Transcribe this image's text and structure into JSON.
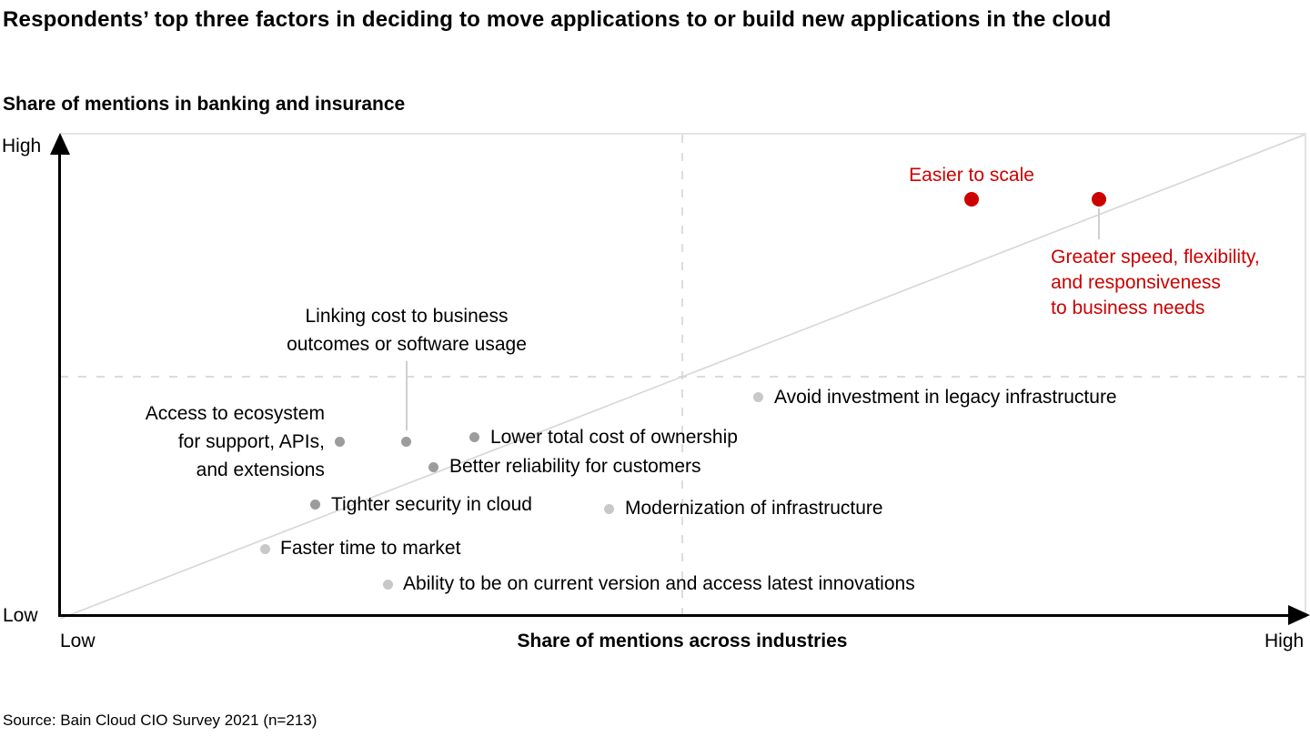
{
  "title": "Respondents’ top three factors in deciding to move applications to or build new applications in the cloud",
  "subtitle": "Share of mentions in banking and insurance",
  "source": "Source: Bain Cloud CIO Survey 2021 (n=213)",
  "axes": {
    "y_high": "High",
    "y_low": "Low",
    "x_low": "Low",
    "x_high": "High",
    "x_title": "Share of mentions across industries"
  },
  "colors": {
    "highlight_red": "#cc0000",
    "dark_dot_gray": "#9c9c9c",
    "light_dot_gray": "#c8c8c8",
    "reference_line_gray": "#d6d6d6",
    "dashed_grid_gray": "#dcdcdc",
    "text_black": "#000000"
  },
  "chart_data": {
    "type": "scatter",
    "title": "Respondents’ top three factors in deciding to move applications to or build new applications in the cloud",
    "xlabel": "Share of mentions across industries",
    "ylabel": "Share of mentions in banking and insurance",
    "x_range": [
      "Low",
      "High"
    ],
    "y_range": [
      "Low",
      "High"
    ],
    "xlim": [
      0,
      1
    ],
    "ylim": [
      0,
      1
    ],
    "grid": "dashed midlines at x=0.5 and y=0.5 plus a diagonal y=x reference line",
    "legend_position": "none",
    "points": [
      {
        "id": "easier-to-scale",
        "lines": [
          "Easier to scale"
        ],
        "x": 0.7325,
        "y": 0.8665,
        "tone": "red",
        "placement": "above"
      },
      {
        "id": "greater-speed-flexibility",
        "lines": [
          "Greater speed, flexibility,",
          "and responsiveness",
          "to business needs"
        ],
        "x": 0.8349,
        "y": 0.8665,
        "tone": "red",
        "placement": "below-leader"
      },
      {
        "id": "avoid-legacy-investment",
        "lines": [
          "Avoid investment in legacy infrastructure"
        ],
        "x": 0.5614,
        "y": 0.4568,
        "tone": "light",
        "placement": "right"
      },
      {
        "id": "access-to-ecosystem",
        "lines": [
          "Access to ecosystem",
          "for support, APIs,",
          "and extensions"
        ],
        "x": 0.2251,
        "y": 0.3647,
        "tone": "dark",
        "placement": "left"
      },
      {
        "id": "linking-cost-to-outcomes",
        "lines": [
          "Linking cost to business",
          "outcomes or software usage"
        ],
        "x": 0.2785,
        "y": 0.3647,
        "tone": "dark",
        "placement": "above-leader"
      },
      {
        "id": "lower-total-cost",
        "lines": [
          "Lower total cost of ownership"
        ],
        "x": 0.3333,
        "y": 0.3741,
        "tone": "dark",
        "placement": "right"
      },
      {
        "id": "better-reliability",
        "lines": [
          "Better reliability for customers"
        ],
        "x": 0.3004,
        "y": 0.3139,
        "tone": "dark",
        "placement": "right"
      },
      {
        "id": "tighter-security",
        "lines": [
          "Tighter security in cloud"
        ],
        "x": 0.2054,
        "y": 0.235,
        "tone": "dark",
        "placement": "right"
      },
      {
        "id": "modernization-infrastructure",
        "lines": [
          "Modernization of infrastructure"
        ],
        "x": 0.4415,
        "y": 0.2274,
        "tone": "light",
        "placement": "right"
      },
      {
        "id": "faster-time-to-market",
        "lines": [
          "Faster time to market"
        ],
        "x": 0.1645,
        "y": 0.1447,
        "tone": "light",
        "placement": "right"
      },
      {
        "id": "ability-current-version",
        "lines": [
          "Ability to be on current version and access latest innovations"
        ],
        "x": 0.2632,
        "y": 0.0714,
        "tone": "light",
        "placement": "right"
      }
    ]
  }
}
